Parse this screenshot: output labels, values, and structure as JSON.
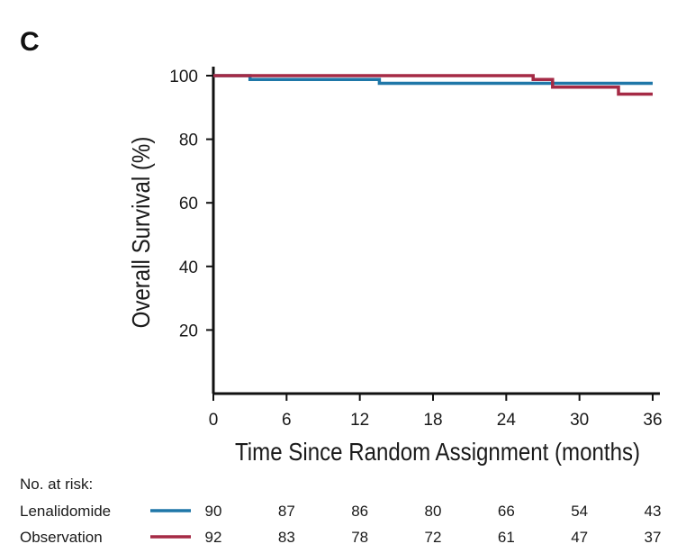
{
  "panel_label": "C",
  "chart_data": {
    "type": "line",
    "step": true,
    "ylabel": "Overall Survival (%)",
    "xlabel": "Time Since Random Assignment (months)",
    "xlim": [
      0,
      36
    ],
    "ylim": [
      0,
      100
    ],
    "xticks": [
      0,
      6,
      12,
      18,
      24,
      30,
      36
    ],
    "yticks": [
      20,
      40,
      60,
      80,
      100
    ],
    "series": [
      {
        "name": "Lenalidomide",
        "color": "#1f77a8",
        "points": [
          [
            0,
            100
          ],
          [
            3,
            100
          ],
          [
            3,
            98.8
          ],
          [
            13.6,
            98.8
          ],
          [
            13.6,
            97.6
          ],
          [
            27.8,
            97.6
          ],
          [
            27.8,
            97.6
          ],
          [
            36,
            97.6
          ]
        ]
      },
      {
        "name": "Observation",
        "color": "#a52a45",
        "points": [
          [
            0,
            100
          ],
          [
            26.2,
            100
          ],
          [
            26.2,
            98.8
          ],
          [
            27.8,
            98.8
          ],
          [
            27.8,
            96.4
          ],
          [
            33.2,
            96.4
          ],
          [
            33.2,
            94.2
          ],
          [
            36,
            94.2
          ]
        ]
      }
    ],
    "risk_table": {
      "title": "No. at risk:",
      "times": [
        0,
        6,
        12,
        18,
        24,
        30,
        36
      ],
      "rows": [
        {
          "name": "Lenalidomide",
          "color": "#1f77a8",
          "counts": [
            "90",
            "87",
            "86",
            "80",
            "66",
            "54",
            "43"
          ]
        },
        {
          "name": "Observation",
          "color": "#a52a45",
          "counts": [
            "92",
            "83",
            "78",
            "72",
            "61",
            "47",
            "37"
          ]
        }
      ]
    }
  }
}
